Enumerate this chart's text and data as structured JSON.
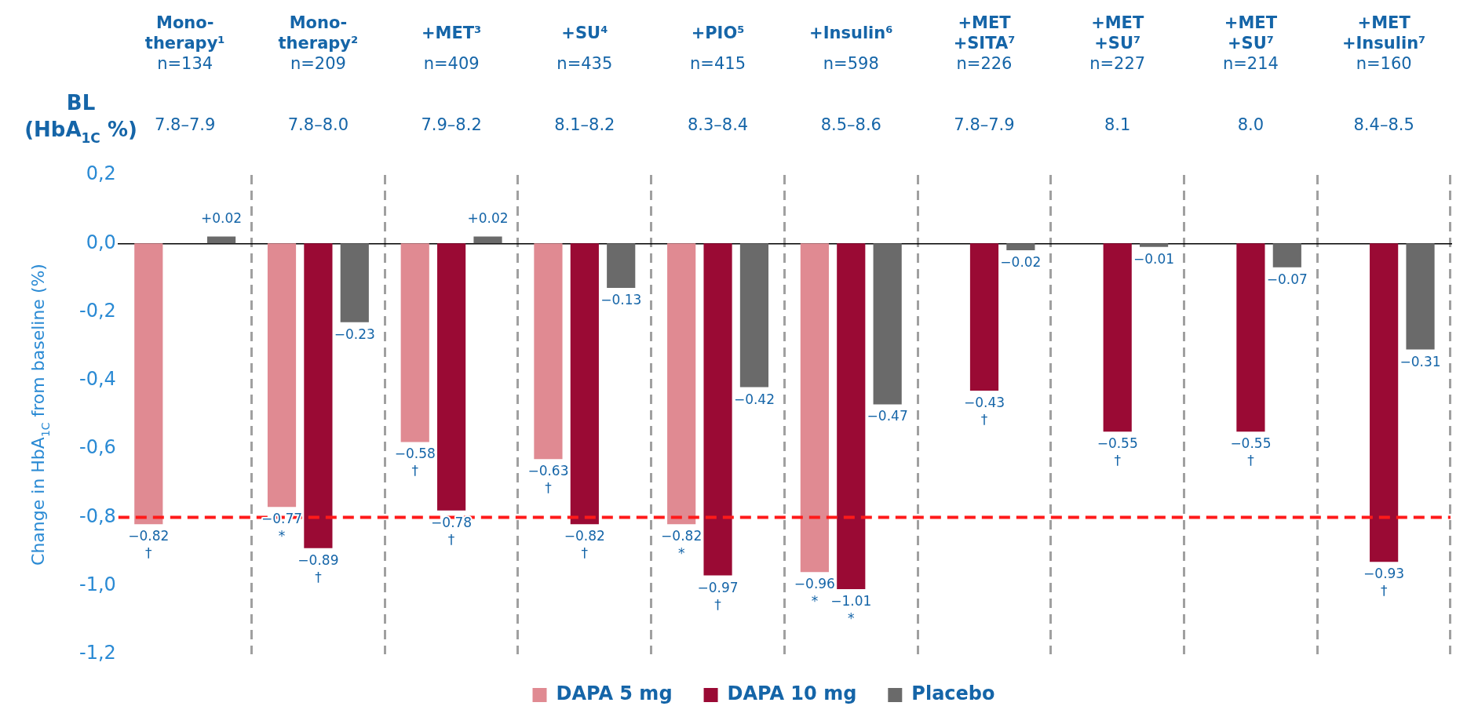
{
  "chart_data": {
    "type": "bar",
    "ylabel": "Change in HbA$_{1C}$ from baseline (%)",
    "annotations": [
      "BL\n(HbA$_{1C}$ %)"
    ],
    "categories": [
      "Mono-\ntherapy¹\nn=134\n7.8–7.9",
      "Mono-\ntherapy²\nn=209\n7.8–8.0",
      "+MET³\nn=409\n7.9–8.2",
      "+SU⁴\nn=435\n8.1–8.2",
      "+PIO⁵\nn=415\n8.3–8.4",
      "+Insulin⁶\nn=598\n8.5–8.6",
      "+MET\n+SITA⁷\nn=226\n7.8–7.9",
      "+MET\n+SU⁷\nn=227\n8.1",
      "+MET\n+SU⁷\nn=214\n8.0",
      "+MET\n+Insulin⁷\nn=160\n8.4–8.5"
    ],
    "series": [
      {
        "name": "DAPA 5 mg",
        "color": "#e08a92",
        "values": [
          -0.82,
          -0.77,
          -0.58,
          -0.63,
          -0.82,
          -0.96,
          null,
          null,
          null,
          null
        ],
        "value_labels": [
          "−0.82\n†",
          "−0.77\n*",
          "−0.58\n†",
          "−0.63\n†",
          "−0.82\n*",
          "−0.96\n*",
          null,
          null,
          null,
          null
        ]
      },
      {
        "name": "DAPA 10 mg",
        "color": "#9a0a34",
        "values": [
          null,
          -0.89,
          -0.78,
          -0.82,
          -0.97,
          -1.01,
          -0.43,
          -0.55,
          -0.55,
          -0.93
        ],
        "value_labels": [
          null,
          "−0.89\n†",
          "−0.78\n†",
          "−0.82\n†",
          "−0.97\n†",
          "−1.01\n*",
          "−0.43\n†",
          "−0.55\n†",
          "−0.55\n†",
          "−0.93\n†"
        ]
      },
      {
        "name": "Placebo",
        "color": "#6a6a6a",
        "values": [
          0.02,
          -0.23,
          0.02,
          -0.13,
          -0.42,
          -0.47,
          -0.02,
          -0.01,
          -0.07,
          -0.31
        ],
        "value_labels": [
          "+0.02",
          "−0.23",
          "+0.02",
          "−0.13",
          "−0.42",
          "−0.47",
          "−0.02",
          "−0.01",
          "−0.07",
          "−0.31"
        ]
      }
    ],
    "ylim": [
      -1.2,
      0.2
    ],
    "yticks": [
      {
        "value": 0.2,
        "label": "0,2"
      },
      {
        "value": 0,
        "label": "0,0"
      },
      {
        "value": -0.2,
        "label": "-0,2"
      },
      {
        "value": -0.4,
        "label": "-0,4"
      },
      {
        "value": -0.6,
        "label": "-0,6"
      },
      {
        "value": -0.8,
        "label": "-0,8"
      },
      {
        "value": -1,
        "label": "-1,0"
      },
      {
        "value": -1.2,
        "label": "-1,2"
      }
    ],
    "ref_lines": [
      {
        "axis": "y",
        "value": -0.8,
        "color": "#ff1a1a",
        "line_style": "dashed"
      }
    ],
    "grid": "x",
    "legend": "bottom"
  }
}
